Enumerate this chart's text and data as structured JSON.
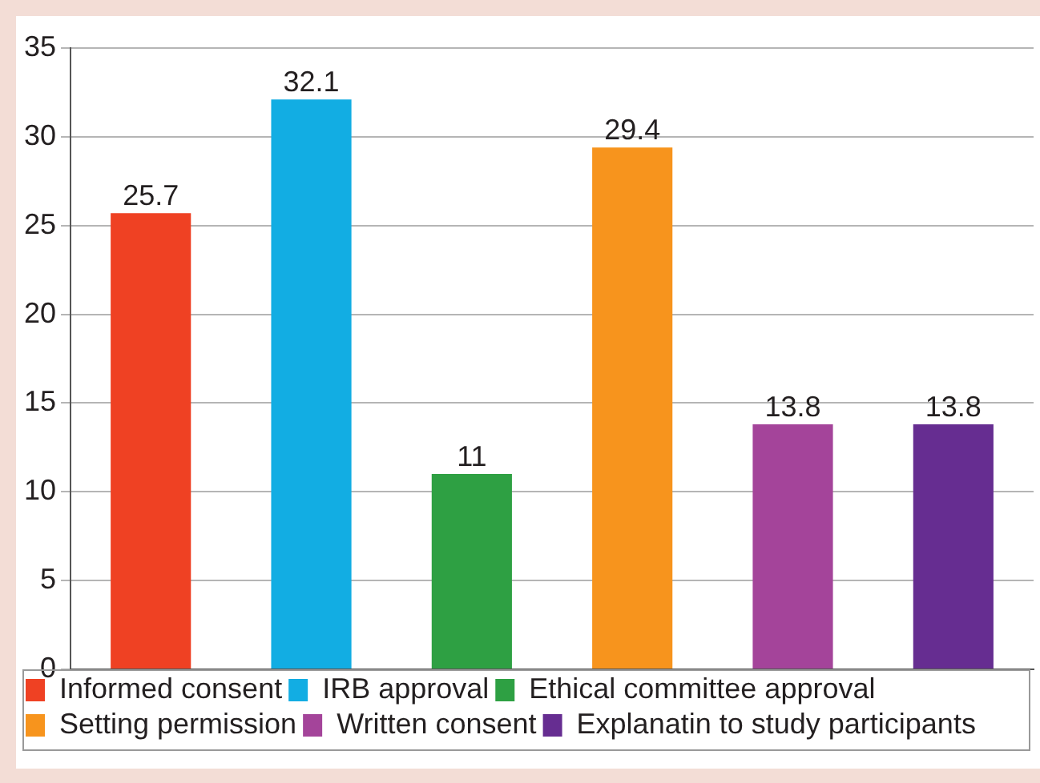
{
  "chart_data": {
    "type": "bar",
    "categories": [
      null,
      null,
      null,
      null,
      null,
      null
    ],
    "series": [
      {
        "name": "Informed consent",
        "color": "#ef4123",
        "values": [
          25.7,
          null,
          null,
          null,
          null,
          null
        ]
      },
      {
        "name": "IRB approval",
        "color": "#12ade3",
        "values": [
          null,
          32.1,
          null,
          null,
          null,
          null
        ]
      },
      {
        "name": "Ethical committee approval",
        "color": "#2ea043",
        "values": [
          null,
          null,
          11,
          null,
          null,
          null
        ]
      },
      {
        "name": "Setting permission",
        "color": "#f7941d",
        "values": [
          null,
          null,
          null,
          29.4,
          null,
          null
        ]
      },
      {
        "name": "Written consent",
        "color": "#a4449a",
        "values": [
          null,
          null,
          null,
          null,
          13.8,
          null
        ]
      },
      {
        "name": "Explanatin to study participants",
        "color": "#662d91",
        "values": [
          null,
          null,
          null,
          null,
          null,
          13.8
        ]
      }
    ],
    "ylim": [
      0,
      35
    ],
    "yticks": [
      0,
      5,
      10,
      15,
      20,
      25,
      30,
      35
    ],
    "grid": "y",
    "legend": "bottom",
    "tick_labels": "y",
    "data_labels": true
  }
}
